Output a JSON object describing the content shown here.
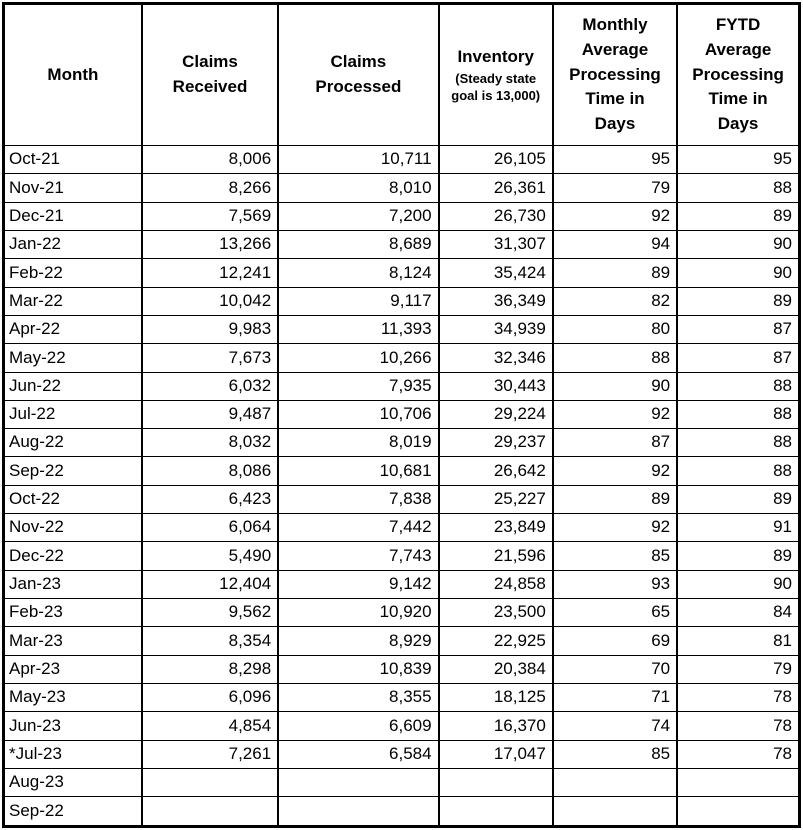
{
  "table": {
    "columns": [
      {
        "label": "Month"
      },
      {
        "label": "Claims\nReceived"
      },
      {
        "label": "Claims\nProcessed"
      },
      {
        "label": "Inventory",
        "sublabel": "(Steady state\ngoal is 13,000)"
      },
      {
        "label": "Monthly\nAverage\nProcessing\nTime in\nDays"
      },
      {
        "label": "FYTD\nAverage\nProcessing\nTime in\nDays"
      }
    ],
    "rows": [
      [
        "Oct-21",
        "8,006",
        "10,711",
        "26,105",
        "95",
        "95"
      ],
      [
        "Nov-21",
        "8,266",
        "8,010",
        "26,361",
        "79",
        "88"
      ],
      [
        "Dec-21",
        "7,569",
        "7,200",
        "26,730",
        "92",
        "89"
      ],
      [
        "Jan-22",
        "13,266",
        "8,689",
        "31,307",
        "94",
        "90"
      ],
      [
        "Feb-22",
        "12,241",
        "8,124",
        "35,424",
        "89",
        "90"
      ],
      [
        "Mar-22",
        "10,042",
        "9,117",
        "36,349",
        "82",
        "89"
      ],
      [
        "Apr-22",
        "9,983",
        "11,393",
        "34,939",
        "80",
        "87"
      ],
      [
        "May-22",
        "7,673",
        "10,266",
        "32,346",
        "88",
        "87"
      ],
      [
        "Jun-22",
        "6,032",
        "7,935",
        "30,443",
        "90",
        "88"
      ],
      [
        "Jul-22",
        "9,487",
        "10,706",
        "29,224",
        "92",
        "88"
      ],
      [
        "Aug-22",
        "8,032",
        "8,019",
        "29,237",
        "87",
        "88"
      ],
      [
        "Sep-22",
        "8,086",
        "10,681",
        "26,642",
        "92",
        "88"
      ],
      [
        "Oct-22",
        "6,423",
        "7,838",
        "25,227",
        "89",
        "89"
      ],
      [
        "Nov-22",
        "6,064",
        "7,442",
        "23,849",
        "92",
        "91"
      ],
      [
        "Dec-22",
        "5,490",
        "7,743",
        "21,596",
        "85",
        "89"
      ],
      [
        "Jan-23",
        "12,404",
        "9,142",
        "24,858",
        "93",
        "90"
      ],
      [
        "Feb-23",
        "9,562",
        "10,920",
        "23,500",
        "65",
        "84"
      ],
      [
        "Mar-23",
        "8,354",
        "8,929",
        "22,925",
        "69",
        "81"
      ],
      [
        "Apr-23",
        "8,298",
        "10,839",
        "20,384",
        "70",
        "79"
      ],
      [
        "May-23",
        "6,096",
        "8,355",
        "18,125",
        "71",
        "78"
      ],
      [
        "Jun-23",
        "4,854",
        "6,609",
        "16,370",
        "74",
        "78"
      ],
      [
        "*Jul-23",
        "7,261",
        "6,584",
        "17,047",
        "85",
        "78"
      ],
      [
        "Aug-23",
        "",
        "",
        "",
        "",
        ""
      ],
      [
        "Sep-22",
        "",
        "",
        "",
        "",
        ""
      ]
    ]
  }
}
